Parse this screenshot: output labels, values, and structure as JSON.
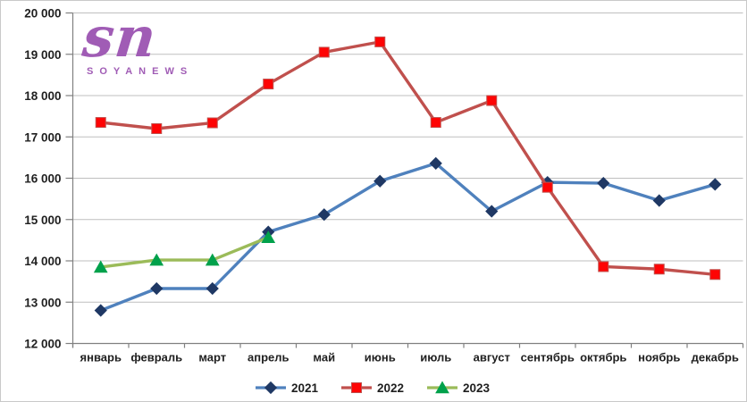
{
  "logo": {
    "mark": "sn",
    "wordmark": "SOYANEWS"
  },
  "colors": {
    "background": "#ffffff",
    "border": "#c9c9c9",
    "grid": "#bfbfbf",
    "axis": "#808080",
    "label": "#1f1f1f",
    "logo_purple": "#a05cb5"
  },
  "chart_data": {
    "type": "line",
    "title": "",
    "xlabel": "",
    "ylabel": "",
    "grid": "horizontal",
    "legend_position": "bottom",
    "ylim": [
      12000,
      20000
    ],
    "ytick_step": 1000,
    "y_tick_labels": [
      "12 000",
      "13 000",
      "14 000",
      "15 000",
      "16 000",
      "17 000",
      "18 000",
      "19 000",
      "20 000"
    ],
    "categories": [
      "январь",
      "февраль",
      "март",
      "апрель",
      "май",
      "июнь",
      "июль",
      "август",
      "сентябрь",
      "октябрь",
      "ноябрь",
      "декабрь"
    ],
    "series": [
      {
        "name": "2021",
        "color": "#4f81bd",
        "marker": "diamond",
        "marker_color": "#1f3864",
        "values": [
          12800,
          13330,
          13330,
          14700,
          15120,
          15930,
          16360,
          15200,
          15900,
          15880,
          15460,
          15850
        ]
      },
      {
        "name": "2022",
        "color": "#c0504d",
        "marker": "square",
        "marker_color": "#fe0404",
        "values": [
          17350,
          17200,
          17340,
          18280,
          19050,
          19300,
          17350,
          17880,
          15780,
          13860,
          13800,
          13670
        ]
      },
      {
        "name": "2023",
        "color": "#9bbb59",
        "marker": "triangle",
        "marker_color": "#00a14b",
        "values": [
          13850,
          14020,
          14020,
          14570,
          null,
          null,
          null,
          null,
          null,
          null,
          null,
          null
        ]
      }
    ]
  }
}
